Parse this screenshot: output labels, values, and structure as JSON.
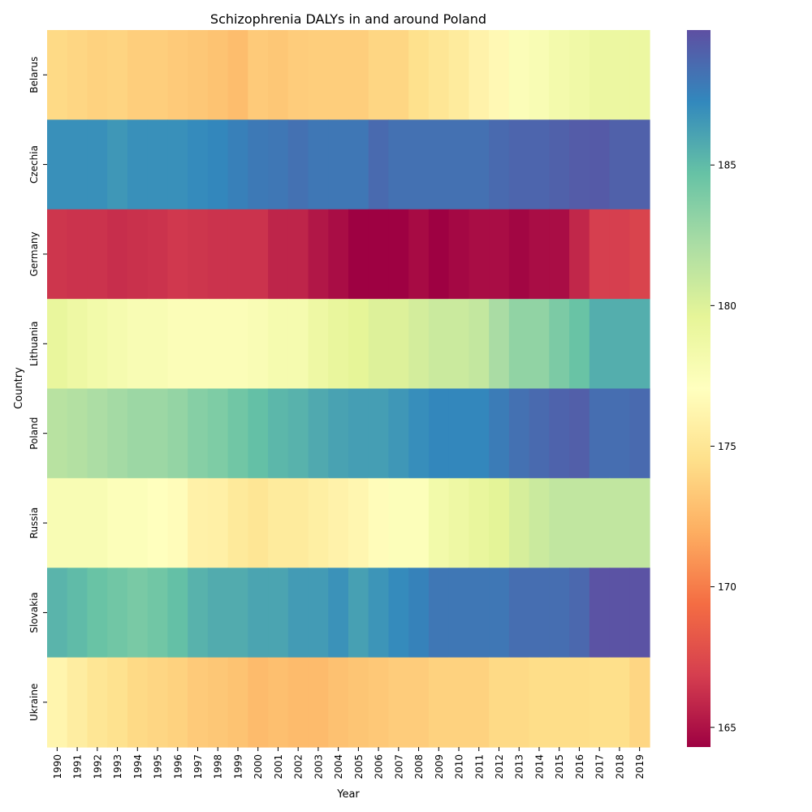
{
  "chart_data": {
    "type": "heatmap",
    "title": "Schizophrenia DALYs in and around Poland",
    "xlabel": "Year",
    "ylabel": "Country",
    "x": [
      1990,
      1991,
      1992,
      1993,
      1994,
      1995,
      1996,
      1997,
      1998,
      1999,
      2000,
      2001,
      2002,
      2003,
      2004,
      2005,
      2006,
      2007,
      2008,
      2009,
      2010,
      2011,
      2012,
      2013,
      2014,
      2015,
      2016,
      2017,
      2018,
      2019
    ],
    "y": [
      "Belarus",
      "Czechia",
      "Germany",
      "Lithuania",
      "Poland",
      "Russia",
      "Slovakia",
      "Ukraine"
    ],
    "values": [
      [
        174.2,
        174.0,
        173.8,
        173.9,
        173.6,
        173.6,
        173.4,
        173.2,
        173.0,
        172.7,
        173.4,
        173.2,
        173.5,
        173.6,
        173.6,
        173.6,
        174.0,
        174.0,
        174.6,
        175.0,
        175.4,
        176.0,
        176.5,
        177.5,
        177.8,
        178.3,
        178.6,
        179.0,
        179.0,
        179.0
      ],
      [
        186.9,
        186.9,
        186.9,
        186.6,
        186.9,
        186.9,
        186.9,
        187.1,
        187.3,
        187.6,
        187.9,
        188.0,
        188.3,
        188.0,
        188.0,
        188.0,
        188.6,
        188.3,
        188.3,
        188.3,
        188.3,
        188.3,
        188.6,
        188.8,
        188.8,
        189.0,
        189.2,
        189.3,
        189.0,
        189.0
      ],
      [
        166.5,
        166.4,
        166.4,
        166.2,
        166.3,
        166.4,
        166.6,
        166.5,
        166.4,
        166.4,
        166.4,
        165.8,
        165.8,
        165.2,
        164.8,
        164.3,
        164.3,
        164.3,
        164.7,
        164.3,
        164.6,
        164.8,
        164.8,
        164.5,
        164.8,
        164.8,
        165.9,
        166.9,
        166.9,
        167.2
      ],
      [
        179.3,
        178.8,
        178.4,
        178.1,
        177.8,
        177.8,
        177.5,
        177.5,
        177.5,
        177.5,
        177.7,
        178.1,
        178.1,
        178.8,
        179.3,
        179.6,
        180.0,
        180.0,
        180.4,
        180.8,
        180.8,
        181.1,
        182.2,
        183.1,
        183.1,
        183.9,
        184.6,
        185.6,
        185.6,
        185.6
      ],
      [
        181.6,
        181.8,
        182.1,
        182.4,
        182.7,
        182.7,
        183.0,
        183.5,
        183.8,
        184.3,
        184.8,
        185.2,
        185.4,
        185.8,
        186.1,
        186.3,
        186.3,
        186.6,
        187.0,
        187.3,
        187.3,
        187.3,
        187.8,
        188.3,
        188.6,
        188.9,
        189.1,
        188.4,
        188.4,
        188.6
      ],
      [
        177.8,
        177.8,
        177.8,
        177.4,
        177.4,
        177.1,
        176.8,
        175.9,
        175.8,
        175.3,
        175.0,
        175.4,
        175.4,
        175.7,
        176.0,
        176.3,
        176.8,
        177.4,
        177.4,
        178.4,
        178.8,
        179.3,
        179.7,
        180.3,
        180.8,
        181.2,
        181.2,
        181.2,
        181.2,
        181.2
      ],
      [
        185.3,
        185.0,
        184.6,
        184.3,
        184.0,
        184.3,
        184.8,
        185.4,
        185.7,
        185.7,
        186.0,
        186.0,
        186.4,
        186.4,
        186.8,
        186.2,
        186.7,
        187.1,
        187.5,
        188.0,
        188.0,
        188.0,
        188.0,
        188.4,
        188.4,
        188.4,
        188.7,
        189.6,
        189.6,
        189.6
      ],
      [
        176.2,
        175.6,
        175.0,
        174.7,
        174.2,
        174.0,
        173.8,
        173.4,
        173.2,
        173.0,
        172.6,
        172.8,
        172.6,
        172.6,
        172.9,
        173.1,
        173.3,
        173.5,
        173.5,
        173.8,
        173.8,
        173.8,
        174.2,
        174.2,
        174.4,
        174.4,
        174.4,
        174.5,
        174.5,
        174.0
      ]
    ],
    "colorbar": {
      "min": 164.3,
      "max": 189.8,
      "ticks": [
        165,
        170,
        175,
        180,
        185
      ]
    },
    "colormap": "Spectral",
    "grid": false
  }
}
